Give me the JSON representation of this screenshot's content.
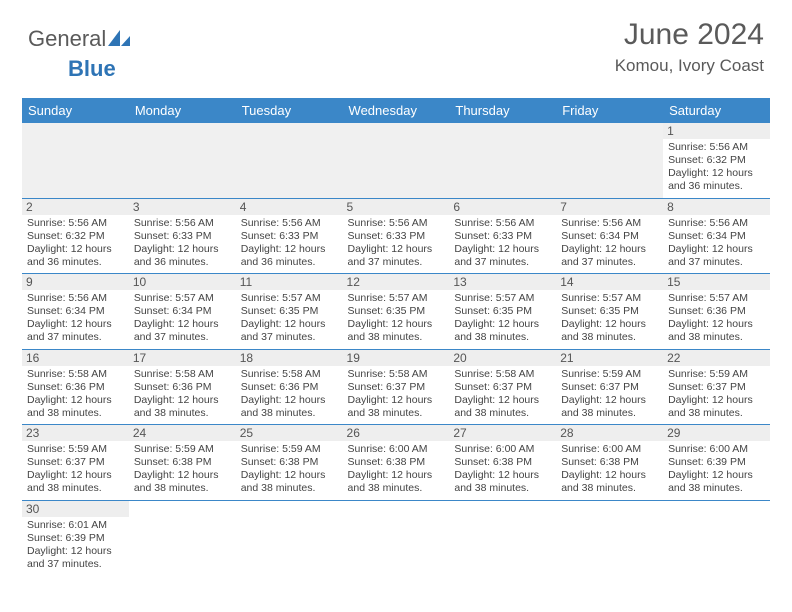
{
  "logo": {
    "part1": "General",
    "part2": "Blue"
  },
  "title": "June 2024",
  "location": "Komou, Ivory Coast",
  "colors": {
    "header_bg": "#3b87c8",
    "header_text": "#ffffff",
    "border": "#3b87c8",
    "daynum_bg": "#eeeeee",
    "text": "#444444",
    "logo_blue": "#2e74b5",
    "title_gray": "#5a5a5a"
  },
  "weekdays": [
    "Sunday",
    "Monday",
    "Tuesday",
    "Wednesday",
    "Thursday",
    "Friday",
    "Saturday"
  ],
  "weeks": [
    [
      null,
      null,
      null,
      null,
      null,
      null,
      {
        "n": "1",
        "sunrise": "Sunrise: 5:56 AM",
        "sunset": "Sunset: 6:32 PM",
        "day1": "Daylight: 12 hours",
        "day2": "and 36 minutes."
      }
    ],
    [
      {
        "n": "2",
        "sunrise": "Sunrise: 5:56 AM",
        "sunset": "Sunset: 6:32 PM",
        "day1": "Daylight: 12 hours",
        "day2": "and 36 minutes."
      },
      {
        "n": "3",
        "sunrise": "Sunrise: 5:56 AM",
        "sunset": "Sunset: 6:33 PM",
        "day1": "Daylight: 12 hours",
        "day2": "and 36 minutes."
      },
      {
        "n": "4",
        "sunrise": "Sunrise: 5:56 AM",
        "sunset": "Sunset: 6:33 PM",
        "day1": "Daylight: 12 hours",
        "day2": "and 36 minutes."
      },
      {
        "n": "5",
        "sunrise": "Sunrise: 5:56 AM",
        "sunset": "Sunset: 6:33 PM",
        "day1": "Daylight: 12 hours",
        "day2": "and 37 minutes."
      },
      {
        "n": "6",
        "sunrise": "Sunrise: 5:56 AM",
        "sunset": "Sunset: 6:33 PM",
        "day1": "Daylight: 12 hours",
        "day2": "and 37 minutes."
      },
      {
        "n": "7",
        "sunrise": "Sunrise: 5:56 AM",
        "sunset": "Sunset: 6:34 PM",
        "day1": "Daylight: 12 hours",
        "day2": "and 37 minutes."
      },
      {
        "n": "8",
        "sunrise": "Sunrise: 5:56 AM",
        "sunset": "Sunset: 6:34 PM",
        "day1": "Daylight: 12 hours",
        "day2": "and 37 minutes."
      }
    ],
    [
      {
        "n": "9",
        "sunrise": "Sunrise: 5:56 AM",
        "sunset": "Sunset: 6:34 PM",
        "day1": "Daylight: 12 hours",
        "day2": "and 37 minutes."
      },
      {
        "n": "10",
        "sunrise": "Sunrise: 5:57 AM",
        "sunset": "Sunset: 6:34 PM",
        "day1": "Daylight: 12 hours",
        "day2": "and 37 minutes."
      },
      {
        "n": "11",
        "sunrise": "Sunrise: 5:57 AM",
        "sunset": "Sunset: 6:35 PM",
        "day1": "Daylight: 12 hours",
        "day2": "and 37 minutes."
      },
      {
        "n": "12",
        "sunrise": "Sunrise: 5:57 AM",
        "sunset": "Sunset: 6:35 PM",
        "day1": "Daylight: 12 hours",
        "day2": "and 38 minutes."
      },
      {
        "n": "13",
        "sunrise": "Sunrise: 5:57 AM",
        "sunset": "Sunset: 6:35 PM",
        "day1": "Daylight: 12 hours",
        "day2": "and 38 minutes."
      },
      {
        "n": "14",
        "sunrise": "Sunrise: 5:57 AM",
        "sunset": "Sunset: 6:35 PM",
        "day1": "Daylight: 12 hours",
        "day2": "and 38 minutes."
      },
      {
        "n": "15",
        "sunrise": "Sunrise: 5:57 AM",
        "sunset": "Sunset: 6:36 PM",
        "day1": "Daylight: 12 hours",
        "day2": "and 38 minutes."
      }
    ],
    [
      {
        "n": "16",
        "sunrise": "Sunrise: 5:58 AM",
        "sunset": "Sunset: 6:36 PM",
        "day1": "Daylight: 12 hours",
        "day2": "and 38 minutes."
      },
      {
        "n": "17",
        "sunrise": "Sunrise: 5:58 AM",
        "sunset": "Sunset: 6:36 PM",
        "day1": "Daylight: 12 hours",
        "day2": "and 38 minutes."
      },
      {
        "n": "18",
        "sunrise": "Sunrise: 5:58 AM",
        "sunset": "Sunset: 6:36 PM",
        "day1": "Daylight: 12 hours",
        "day2": "and 38 minutes."
      },
      {
        "n": "19",
        "sunrise": "Sunrise: 5:58 AM",
        "sunset": "Sunset: 6:37 PM",
        "day1": "Daylight: 12 hours",
        "day2": "and 38 minutes."
      },
      {
        "n": "20",
        "sunrise": "Sunrise: 5:58 AM",
        "sunset": "Sunset: 6:37 PM",
        "day1": "Daylight: 12 hours",
        "day2": "and 38 minutes."
      },
      {
        "n": "21",
        "sunrise": "Sunrise: 5:59 AM",
        "sunset": "Sunset: 6:37 PM",
        "day1": "Daylight: 12 hours",
        "day2": "and 38 minutes."
      },
      {
        "n": "22",
        "sunrise": "Sunrise: 5:59 AM",
        "sunset": "Sunset: 6:37 PM",
        "day1": "Daylight: 12 hours",
        "day2": "and 38 minutes."
      }
    ],
    [
      {
        "n": "23",
        "sunrise": "Sunrise: 5:59 AM",
        "sunset": "Sunset: 6:37 PM",
        "day1": "Daylight: 12 hours",
        "day2": "and 38 minutes."
      },
      {
        "n": "24",
        "sunrise": "Sunrise: 5:59 AM",
        "sunset": "Sunset: 6:38 PM",
        "day1": "Daylight: 12 hours",
        "day2": "and 38 minutes."
      },
      {
        "n": "25",
        "sunrise": "Sunrise: 5:59 AM",
        "sunset": "Sunset: 6:38 PM",
        "day1": "Daylight: 12 hours",
        "day2": "and 38 minutes."
      },
      {
        "n": "26",
        "sunrise": "Sunrise: 6:00 AM",
        "sunset": "Sunset: 6:38 PM",
        "day1": "Daylight: 12 hours",
        "day2": "and 38 minutes."
      },
      {
        "n": "27",
        "sunrise": "Sunrise: 6:00 AM",
        "sunset": "Sunset: 6:38 PM",
        "day1": "Daylight: 12 hours",
        "day2": "and 38 minutes."
      },
      {
        "n": "28",
        "sunrise": "Sunrise: 6:00 AM",
        "sunset": "Sunset: 6:38 PM",
        "day1": "Daylight: 12 hours",
        "day2": "and 38 minutes."
      },
      {
        "n": "29",
        "sunrise": "Sunrise: 6:00 AM",
        "sunset": "Sunset: 6:39 PM",
        "day1": "Daylight: 12 hours",
        "day2": "and 38 minutes."
      }
    ],
    [
      {
        "n": "30",
        "sunrise": "Sunrise: 6:01 AM",
        "sunset": "Sunset: 6:39 PM",
        "day1": "Daylight: 12 hours",
        "day2": "and 37 minutes."
      },
      null,
      null,
      null,
      null,
      null,
      null
    ]
  ]
}
